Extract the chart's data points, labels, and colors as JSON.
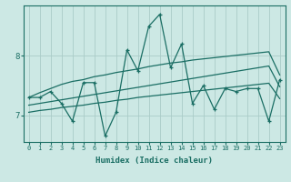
{
  "xlabel": "Humidex (Indice chaleur)",
  "ylabel": "",
  "bg_color": "#cce8e4",
  "line_color": "#1a6e64",
  "grid_color": "#aaccc8",
  "xlim": [
    -0.5,
    23.5
  ],
  "ylim": [
    6.55,
    8.85
  ],
  "yticks": [
    7,
    8
  ],
  "xticks": [
    0,
    1,
    2,
    3,
    4,
    5,
    6,
    7,
    8,
    9,
    10,
    11,
    12,
    13,
    14,
    15,
    16,
    17,
    18,
    19,
    20,
    21,
    22,
    23
  ],
  "data_x": [
    0,
    1,
    2,
    3,
    4,
    5,
    6,
    7,
    8,
    9,
    10,
    11,
    12,
    13,
    14,
    15,
    16,
    17,
    18,
    19,
    20,
    21,
    22,
    23
  ],
  "data_y": [
    7.3,
    7.3,
    7.4,
    7.2,
    6.9,
    7.55,
    7.55,
    6.65,
    7.05,
    8.1,
    7.75,
    8.5,
    8.7,
    7.8,
    8.2,
    7.2,
    7.5,
    7.1,
    7.45,
    7.4,
    7.45,
    7.45,
    6.9,
    7.6
  ],
  "upper_band_y": [
    7.3,
    7.38,
    7.45,
    7.52,
    7.57,
    7.6,
    7.65,
    7.68,
    7.72,
    7.75,
    7.78,
    7.82,
    7.85,
    7.88,
    7.9,
    7.93,
    7.95,
    7.97,
    7.99,
    8.01,
    8.03,
    8.05,
    8.07,
    7.68
  ],
  "lower_band_y": [
    7.05,
    7.08,
    7.1,
    7.13,
    7.15,
    7.17,
    7.2,
    7.22,
    7.25,
    7.27,
    7.3,
    7.32,
    7.34,
    7.36,
    7.38,
    7.4,
    7.42,
    7.44,
    7.46,
    7.48,
    7.5,
    7.52,
    7.54,
    7.28
  ],
  "trend_y": [
    7.17,
    7.2,
    7.23,
    7.26,
    7.29,
    7.32,
    7.35,
    7.38,
    7.41,
    7.44,
    7.47,
    7.5,
    7.53,
    7.56,
    7.59,
    7.62,
    7.65,
    7.68,
    7.71,
    7.74,
    7.77,
    7.8,
    7.83,
    7.48
  ]
}
